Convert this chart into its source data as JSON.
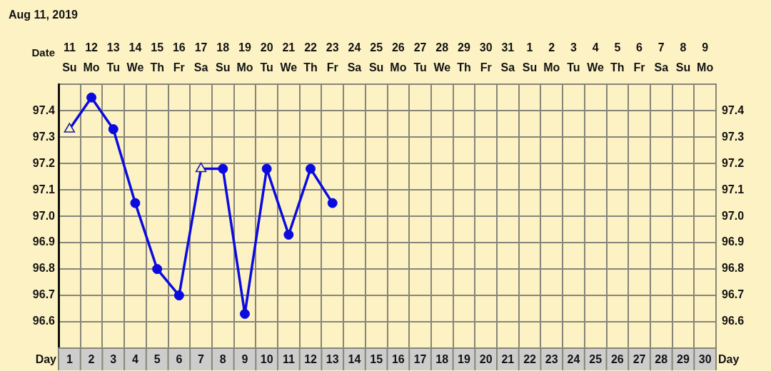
{
  "chart_data": {
    "type": "line",
    "title": "Aug 11, 2019",
    "xlabel": "Date",
    "x2label": "Day",
    "categories": [
      "11",
      "12",
      "13",
      "14",
      "15",
      "16",
      "17",
      "18",
      "19",
      "20",
      "21",
      "22",
      "23",
      "24",
      "25",
      "26",
      "27",
      "28",
      "29",
      "30",
      "31",
      "1",
      "2",
      "3",
      "4",
      "5",
      "6",
      "7",
      "8",
      "9"
    ],
    "x2lim": [
      0.5,
      30.5
    ],
    "x2ticks": [
      1,
      2,
      3,
      4,
      5,
      6,
      7,
      8,
      9,
      10,
      11,
      12,
      13,
      14,
      15,
      16,
      17,
      18,
      19,
      20,
      21,
      22,
      23,
      24,
      25,
      26,
      27,
      28,
      29,
      30
    ],
    "ylim": [
      96.5,
      97.5
    ],
    "yticks": [
      96.6,
      96.7,
      96.8,
      96.9,
      {
        "value": 97,
        "label": "97.0"
      },
      97.1,
      97.2,
      97.3,
      97.4
    ],
    "y2lim": [
      96.5,
      97.5
    ],
    "y2ticks": [
      96.6,
      96.7,
      96.8,
      96.9,
      {
        "value": 97,
        "label": "97.0"
      },
      97.1,
      97.2,
      97.3,
      97.4
    ],
    "grid": true,
    "annotations": [
      "Su",
      "Mo",
      "Tu",
      "We",
      "Th",
      "Fr",
      "Sa",
      "Su",
      "Mo",
      "Tu",
      "We",
      "Th",
      "Fr",
      "Sa",
      "Su",
      "Mo",
      "Tu",
      "We",
      "Th",
      "Fr",
      "Sa",
      "Su",
      "Mo",
      "Tu",
      "We",
      "Th",
      "Fr",
      "Sa",
      "Su",
      "Mo"
    ],
    "series": [
      {
        "type": "line",
        "color": "#0b0be0",
        "marker": "none",
        "values": [
          97.33,
          97.45,
          97.33,
          97.05,
          96.8,
          96.7,
          97.18,
          97.18,
          96.63,
          97.18,
          96.93,
          97.18,
          97.05,
          null,
          null,
          null,
          null,
          null,
          null,
          null,
          null,
          null,
          null,
          null,
          null,
          null,
          null,
          null,
          null,
          null
        ]
      },
      {
        "type": "scatter",
        "color": "#0b0be0",
        "marker": "circle",
        "values": [
          null,
          97.45,
          97.33,
          97.05,
          96.8,
          96.7,
          null,
          97.18,
          96.63,
          97.18,
          96.93,
          97.18,
          97.05,
          null,
          null,
          null,
          null,
          null,
          null,
          null,
          null,
          null,
          null,
          null,
          null,
          null,
          null,
          null,
          null,
          null
        ]
      },
      {
        "type": "scatter",
        "color": "#1c1ca8",
        "marker": "triangle",
        "values": [
          97.33,
          null,
          null,
          null,
          null,
          null,
          97.18,
          null,
          null,
          null,
          null,
          null,
          null,
          null,
          null,
          null,
          null,
          null,
          null,
          null,
          null,
          null,
          null,
          null,
          null,
          null,
          null,
          null,
          null,
          null
        ]
      }
    ]
  }
}
